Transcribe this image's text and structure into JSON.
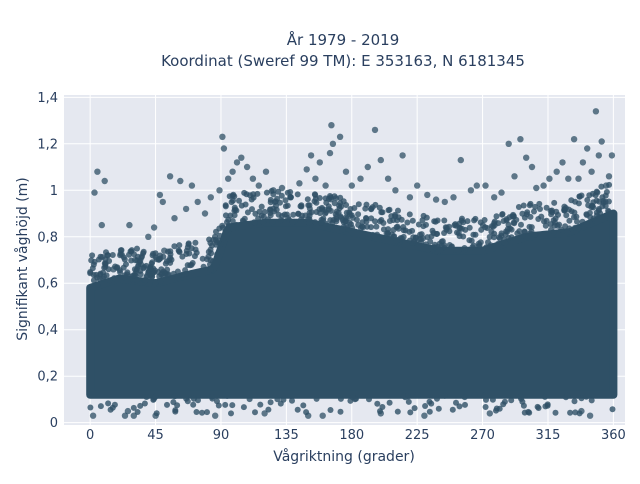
{
  "chart_data": {
    "type": "scatter",
    "title": "År 1979 - 2019",
    "subtitle": "Koordinat (Sweref 99 TM): E 353163, N 6181345",
    "xlabel": "Vågriktning (grader)",
    "ylabel": "Signifikant våghöjd (m)",
    "xlim": [
      -18,
      368
    ],
    "ylim": [
      -0.01,
      1.41
    ],
    "xticks": [
      0,
      45,
      90,
      135,
      180,
      225,
      270,
      315,
      360
    ],
    "xtick_labels": [
      "0",
      "45",
      "90",
      "135",
      "180",
      "225",
      "270",
      "315",
      "360"
    ],
    "yticks": [
      0,
      0.2,
      0.4,
      0.6,
      0.8,
      1.0,
      1.2,
      1.4
    ],
    "ytick_labels": [
      "0",
      "0,2",
      "0,4",
      "0,6",
      "0,8",
      "1",
      "1,2",
      "1,4"
    ],
    "grid": true,
    "legend": "none",
    "marker_color": "#2f5066",
    "background_color": "#e5e8f0",
    "dense_band": {
      "x_range": [
        0,
        360
      ],
      "y_bottom": 0.12,
      "y_top_by_direction": [
        [
          0,
          0.58
        ],
        [
          20,
          0.62
        ],
        [
          45,
          0.6
        ],
        [
          70,
          0.64
        ],
        [
          85,
          0.66
        ],
        [
          95,
          0.84
        ],
        [
          120,
          0.86
        ],
        [
          150,
          0.86
        ],
        [
          180,
          0.82
        ],
        [
          210,
          0.78
        ],
        [
          240,
          0.74
        ],
        [
          270,
          0.74
        ],
        [
          300,
          0.8
        ],
        [
          330,
          0.82
        ],
        [
          360,
          0.9
        ]
      ]
    },
    "points": [
      {
        "x": 2,
        "y": 0.03
      },
      {
        "x": 5,
        "y": 1.08
      },
      {
        "x": 3,
        "y": 0.99
      },
      {
        "x": 8,
        "y": 0.85
      },
      {
        "x": 12,
        "y": 0.72
      },
      {
        "x": 16,
        "y": 0.66
      },
      {
        "x": 10,
        "y": 1.04
      },
      {
        "x": 24,
        "y": 0.03
      },
      {
        "x": 26,
        "y": 0.05
      },
      {
        "x": 30,
        "y": 0.03
      },
      {
        "x": 27,
        "y": 0.85
      },
      {
        "x": 31,
        "y": 0.7
      },
      {
        "x": 35,
        "y": 0.68
      },
      {
        "x": 40,
        "y": 0.8
      },
      {
        "x": 44,
        "y": 0.84
      },
      {
        "x": 48,
        "y": 0.98
      },
      {
        "x": 50,
        "y": 0.95
      },
      {
        "x": 45,
        "y": 0.03
      },
      {
        "x": 51,
        "y": 0.74
      },
      {
        "x": 55,
        "y": 1.06
      },
      {
        "x": 58,
        "y": 0.88
      },
      {
        "x": 62,
        "y": 1.04
      },
      {
        "x": 66,
        "y": 0.92
      },
      {
        "x": 70,
        "y": 1.02
      },
      {
        "x": 74,
        "y": 0.95
      },
      {
        "x": 79,
        "y": 0.9
      },
      {
        "x": 83,
        "y": 0.97
      },
      {
        "x": 86,
        "y": 0.03
      },
      {
        "x": 89,
        "y": 1.0
      },
      {
        "x": 91,
        "y": 1.23
      },
      {
        "x": 92,
        "y": 1.18
      },
      {
        "x": 95,
        "y": 1.05
      },
      {
        "x": 98,
        "y": 1.08
      },
      {
        "x": 101,
        "y": 1.12
      },
      {
        "x": 104,
        "y": 1.14
      },
      {
        "x": 108,
        "y": 1.1
      },
      {
        "x": 112,
        "y": 1.05
      },
      {
        "x": 116,
        "y": 1.02
      },
      {
        "x": 121,
        "y": 1.08
      },
      {
        "x": 126,
        "y": 1.0
      },
      {
        "x": 132,
        "y": 1.01
      },
      {
        "x": 138,
        "y": 0.97
      },
      {
        "x": 144,
        "y": 1.03
      },
      {
        "x": 149,
        "y": 1.09
      },
      {
        "x": 152,
        "y": 1.15
      },
      {
        "x": 155,
        "y": 1.05
      },
      {
        "x": 158,
        "y": 1.12
      },
      {
        "x": 162,
        "y": 1.02
      },
      {
        "x": 165,
        "y": 1.16
      },
      {
        "x": 166,
        "y": 1.28
      },
      {
        "x": 167,
        "y": 1.2
      },
      {
        "x": 172,
        "y": 1.23
      },
      {
        "x": 176,
        "y": 1.08
      },
      {
        "x": 180,
        "y": 1.02
      },
      {
        "x": 186,
        "y": 1.05
      },
      {
        "x": 191,
        "y": 1.1
      },
      {
        "x": 196,
        "y": 1.26
      },
      {
        "x": 200,
        "y": 1.13
      },
      {
        "x": 205,
        "y": 1.05
      },
      {
        "x": 210,
        "y": 1.0
      },
      {
        "x": 215,
        "y": 1.15
      },
      {
        "x": 220,
        "y": 0.97
      },
      {
        "x": 225,
        "y": 1.02
      },
      {
        "x": 232,
        "y": 0.98
      },
      {
        "x": 238,
        "y": 0.96
      },
      {
        "x": 244,
        "y": 0.95
      },
      {
        "x": 250,
        "y": 0.97
      },
      {
        "x": 255,
        "y": 1.13
      },
      {
        "x": 262,
        "y": 1.0
      },
      {
        "x": 266,
        "y": 1.02
      },
      {
        "x": 272,
        "y": 1.02
      },
      {
        "x": 278,
        "y": 0.97
      },
      {
        "x": 283,
        "y": 0.99
      },
      {
        "x": 288,
        "y": 1.2
      },
      {
        "x": 292,
        "y": 1.06
      },
      {
        "x": 296,
        "y": 1.22
      },
      {
        "x": 300,
        "y": 1.14
      },
      {
        "x": 304,
        "y": 1.1
      },
      {
        "x": 307,
        "y": 1.01
      },
      {
        "x": 312,
        "y": 1.02
      },
      {
        "x": 316,
        "y": 1.05
      },
      {
        "x": 321,
        "y": 1.08
      },
      {
        "x": 325,
        "y": 1.12
      },
      {
        "x": 329,
        "y": 1.05
      },
      {
        "x": 333,
        "y": 1.22
      },
      {
        "x": 336,
        "y": 1.05
      },
      {
        "x": 339,
        "y": 1.12
      },
      {
        "x": 342,
        "y": 1.18
      },
      {
        "x": 345,
        "y": 1.08
      },
      {
        "x": 348,
        "y": 1.34
      },
      {
        "x": 350,
        "y": 1.15
      },
      {
        "x": 352,
        "y": 1.21
      },
      {
        "x": 355,
        "y": 1.02
      },
      {
        "x": 357,
        "y": 1.06
      },
      {
        "x": 359,
        "y": 1.15
      },
      {
        "x": 344,
        "y": 0.03
      },
      {
        "x": 338,
        "y": 0.05
      },
      {
        "x": 150,
        "y": 0.03
      },
      {
        "x": 160,
        "y": 0.03
      },
      {
        "x": 230,
        "y": 0.03
      },
      {
        "x": 200,
        "y": 0.04
      },
      {
        "x": 120,
        "y": 0.04
      },
      {
        "x": 275,
        "y": 0.04
      }
    ]
  }
}
